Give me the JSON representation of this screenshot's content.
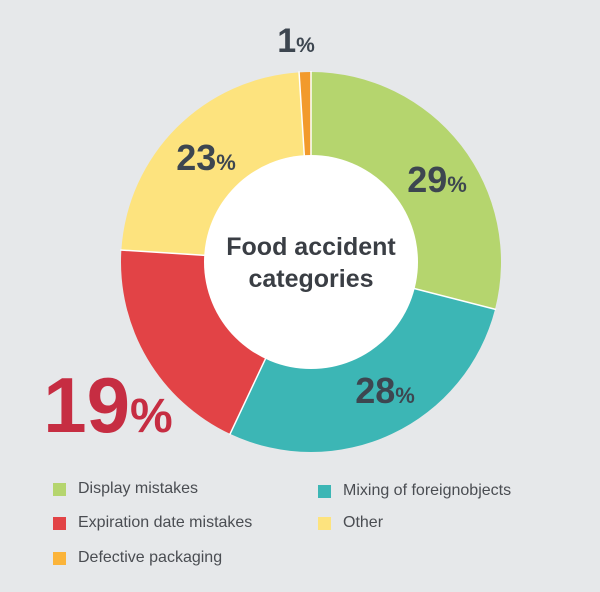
{
  "chart_data": {
    "type": "pie",
    "center_label": [
      "Food accident",
      "categories"
    ],
    "slices": [
      {
        "name": "Display mistakes",
        "value": 29,
        "label": "29%",
        "color": "#b5d56e"
      },
      {
        "name": "Mixing of foreignobjects",
        "value": 28,
        "label": "28%",
        "color": "#3cb6b5"
      },
      {
        "name": "Expiration date mistakes",
        "value": 19,
        "label": "19%",
        "color": "#e24346"
      },
      {
        "name": "Other",
        "value": 23,
        "label": "23%",
        "color": "#fde37e"
      },
      {
        "name": "Defective packaging",
        "value": 1,
        "label": "1%",
        "color": "#f29a2c"
      }
    ],
    "legend": [
      {
        "name": "Display mistakes",
        "color": "#b5d56e"
      },
      {
        "name": "Mixing of foreignobjects",
        "color": "#3cb6b5"
      },
      {
        "name": "Expiration date mistakes",
        "color": "#e24346"
      },
      {
        "name": "Other",
        "color": "#fde37e"
      },
      {
        "name": "Defective packaging",
        "color": "#fbb43a"
      }
    ]
  }
}
